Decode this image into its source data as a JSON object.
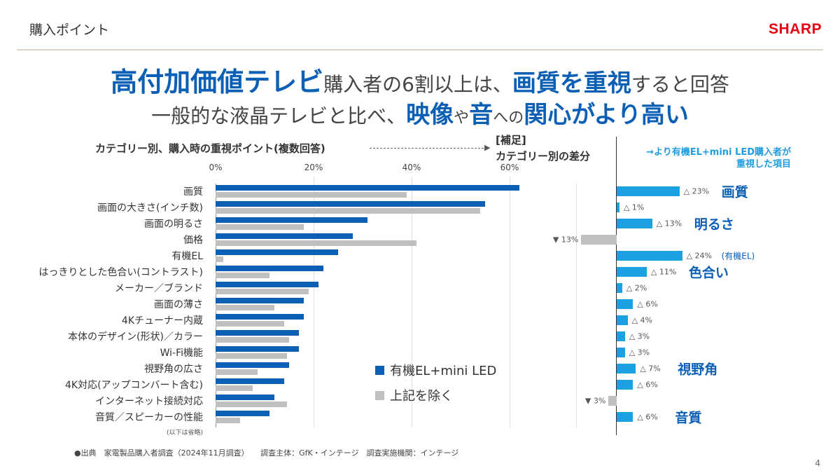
{
  "header": {
    "page_label": "購入ポイント",
    "logo_text": "SHARP"
  },
  "headline": {
    "l1a": "高付加価値テレビ",
    "l1b": "購入者の6割以上は、",
    "l1c": "画質を重視",
    "l1d": "すると回答",
    "l2a": "一般的な液晶テレビと比べ、",
    "l2b": "映像",
    "l2c": "や",
    "l2d": "音",
    "l2e": "への",
    "l2f": "関心がより高い"
  },
  "chart_data": [
    {
      "type": "bar",
      "orientation": "horizontal",
      "title": "カテゴリー別、購入時の重視ポイント(複数回答)",
      "ticks": [
        "0%",
        "20%",
        "40%",
        "60%"
      ],
      "xlim": [
        0,
        70
      ],
      "categories": [
        "画質",
        "画面の大きさ(インチ数)",
        "画面の明るさ",
        "価格",
        "有機EL",
        "はっきりとした色合い(コントラスト)",
        "メーカー／ブランド",
        "画面の薄さ",
        "4Kチューナー内蔵",
        "本体のデザイン(形状)／カラー",
        "Wi-Fi機能",
        "視野角の広さ",
        "4K対応(アップコンバート含む)",
        "インターネット接続対応",
        "音質／スピーカーの性能"
      ],
      "series": [
        {
          "name": "有機EL+mini LED",
          "values": [
            62,
            55,
            31,
            28,
            25,
            22,
            21,
            18,
            18,
            17,
            17,
            15,
            14,
            12,
            11
          ]
        },
        {
          "name": "上記を除く",
          "values": [
            39,
            54,
            18,
            41,
            1.5,
            11,
            19,
            12,
            14,
            15,
            14.5,
            8.5,
            7.5,
            14.5,
            5
          ]
        }
      ],
      "note": "(以下は省略)",
      "legend_position": "bottom-right"
    },
    {
      "type": "bar",
      "orientation": "horizontal",
      "title": "[補足]",
      "subtitle": "カテゴリー別の差分",
      "values": [
        23,
        1,
        13,
        -13,
        24,
        11,
        2,
        6,
        4,
        3,
        3,
        7,
        6,
        -3,
        6
      ],
      "labels": [
        "△ 23%",
        "△ 1%",
        "△ 13%",
        "▼ 13%",
        "△ 24%",
        "△ 11%",
        "△ 2%",
        "△ 6%",
        "△ 4%",
        "△ 3%",
        "△ 3%",
        "△ 7%",
        "△ 6%",
        "▼ 3%",
        "△ 6%"
      ]
    }
  ],
  "side_panel": {
    "title_line1": "→より有機EL+mini LED購入者が",
    "title_line2": "重視した項目",
    "highlights": [
      {
        "row": 0,
        "text": "画質"
      },
      {
        "row": 2,
        "text": "明るさ"
      },
      {
        "row": 5,
        "text": "色合い"
      },
      {
        "row": 11,
        "text": "視野角"
      },
      {
        "row": 14,
        "text": "音質"
      }
    ],
    "paren_row": 4,
    "paren_text": "(有機EL)"
  },
  "footer": "●出典　家電製品購入者調査（2024年11月調査）　　調査主体：GfK・インテージ　調査実施機関：インテージ",
  "page_number": "4",
  "colors": {
    "series_a": "#0b5fb5",
    "series_b": "#bfbfbf",
    "diff_pos": "#1ba1e2",
    "diff_neg": "#bfbfbf",
    "logo": "#e60012"
  }
}
